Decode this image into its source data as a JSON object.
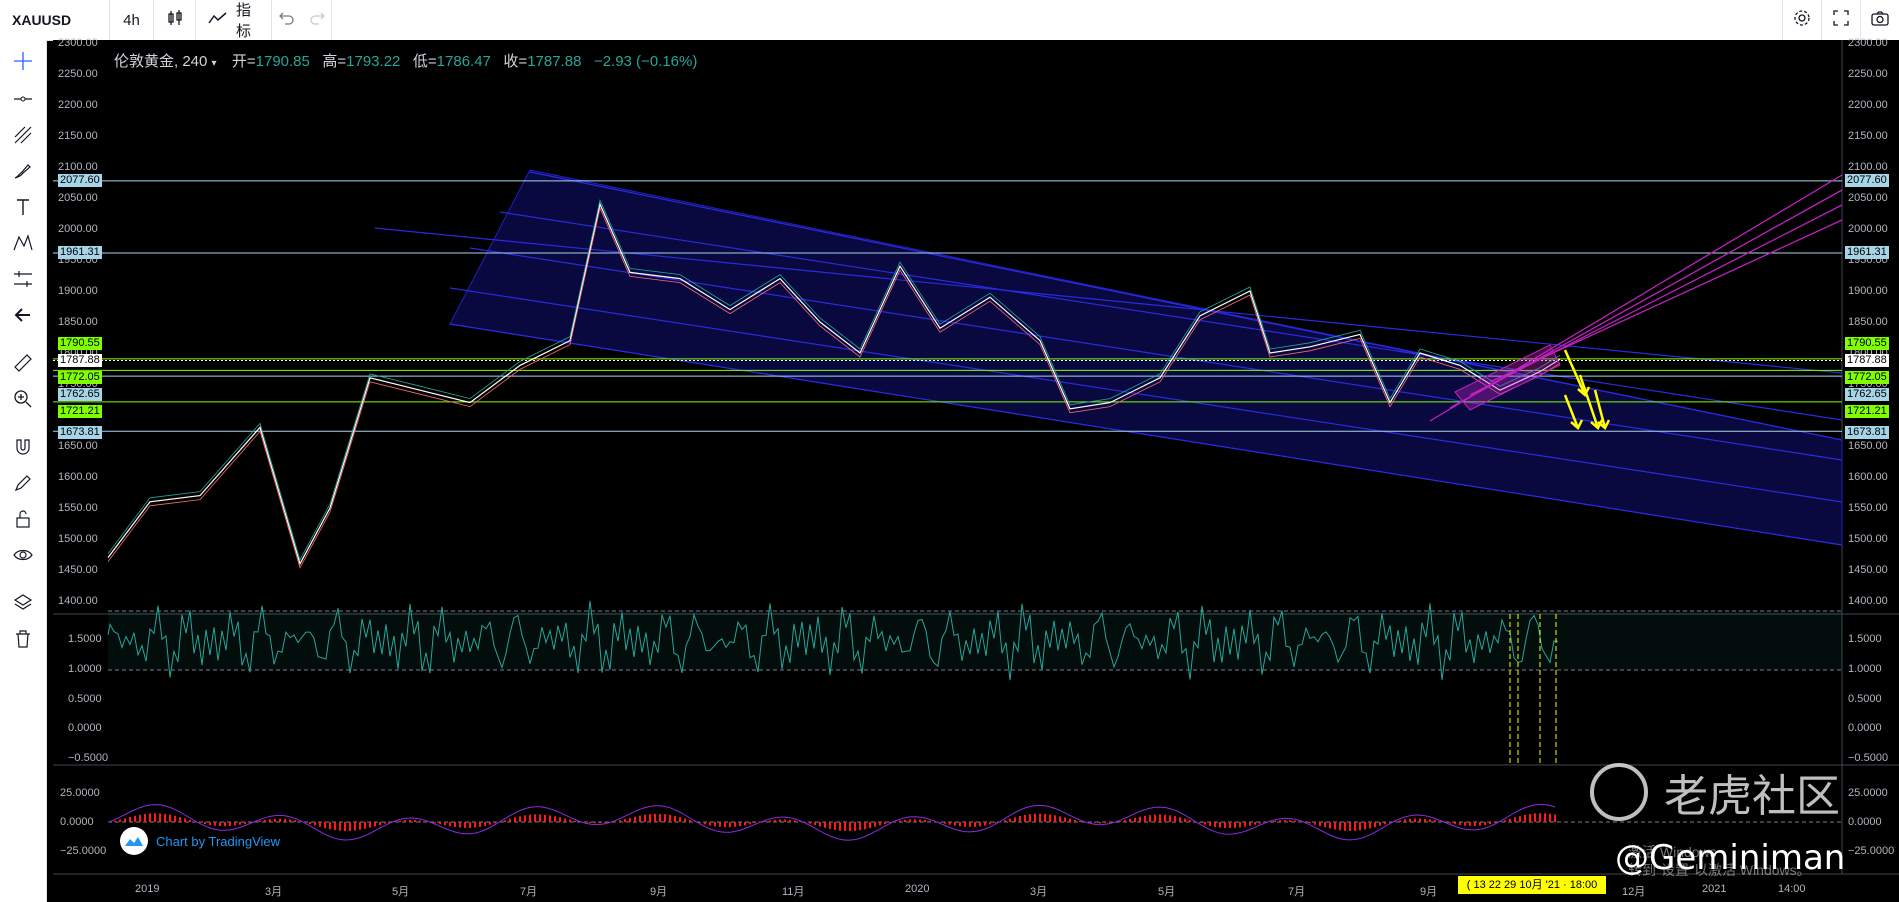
{
  "toolbar": {
    "symbol": "XAUUSD",
    "interval": "4h",
    "indicators_label": "指标"
  },
  "legend": {
    "title": "伦敦黄金, 240",
    "open_label": "开=",
    "open": "1790.85",
    "high_label": "高=",
    "high": "1793.22",
    "low_label": "低=",
    "low": "1786.47",
    "close_label": "收=",
    "close": "1787.88",
    "change": "−2.93 (−0.16%)"
  },
  "price_axis": [
    "2300.00",
    "2250.00",
    "2200.00",
    "2150.00",
    "2100.00",
    "2050.00",
    "2000.00",
    "1950.00",
    "1900.00",
    "1850.00",
    "1800.00",
    "1750.00",
    "1700.00",
    "1650.00",
    "1600.00",
    "1550.00",
    "1500.00",
    "1450.00",
    "1400.00"
  ],
  "price_tags": [
    {
      "text": "2077.60",
      "color": "#a7d5e8"
    },
    {
      "text": "1961.31",
      "color": "#a7d5e8"
    },
    {
      "text": "1790.55",
      "color": "#7fff00"
    },
    {
      "text": "1787.88",
      "color": "#ffffff"
    },
    {
      "text": "1772.05",
      "color": "#7fff00"
    },
    {
      "text": "1762.65",
      "color": "#a7d5e8"
    },
    {
      "text": "1721.21",
      "color": "#7fff00"
    },
    {
      "text": "1673.81",
      "color": "#a7d5e8"
    }
  ],
  "osc1_axis": [
    "1.5000",
    "1.0000",
    "0.5000",
    "0.0000",
    "−0.5000"
  ],
  "osc2_axis": [
    "25.0000",
    "0.0000",
    "−25.0000"
  ],
  "time_axis": [
    "2019",
    "3月",
    "5月",
    "7月",
    "9月",
    "11月",
    "2020",
    "3月",
    "5月",
    "7月",
    "9月",
    "12月",
    "2021",
    "14:00"
  ],
  "time_highlight": "( 13  22 29 10月 '21 · 18:00",
  "tv_badge": "Chart by TradingView",
  "watermark_text": "老虎社区",
  "author": "@Geminiman",
  "win_notice_line1": "激活 Windows",
  "win_notice_line2": "转到\"设置\"以激活 Windows。",
  "colors": {
    "channel": "#1a1aa0",
    "pitchfork": "#c020c0",
    "arrows": "#ffff00",
    "oscillator": "#26a69a",
    "macd_hist": "#ff1a1a"
  },
  "icons": [
    "crosshair-icon",
    "trend-line-icon",
    "pitchfork-icon",
    "brush-icon",
    "text-icon",
    "pattern-icon",
    "prediction-icon",
    "back-arrow-icon",
    "ruler-icon",
    "zoom-in-icon",
    "magnet-icon",
    "lock-pen-icon",
    "lock-icon",
    "eye-icon",
    "layers-icon",
    "trash-icon",
    "settings-icon",
    "fullscreen-icon",
    "camera-icon",
    "undo-icon",
    "redo-icon",
    "candles-icon",
    "indicators-icon"
  ]
}
